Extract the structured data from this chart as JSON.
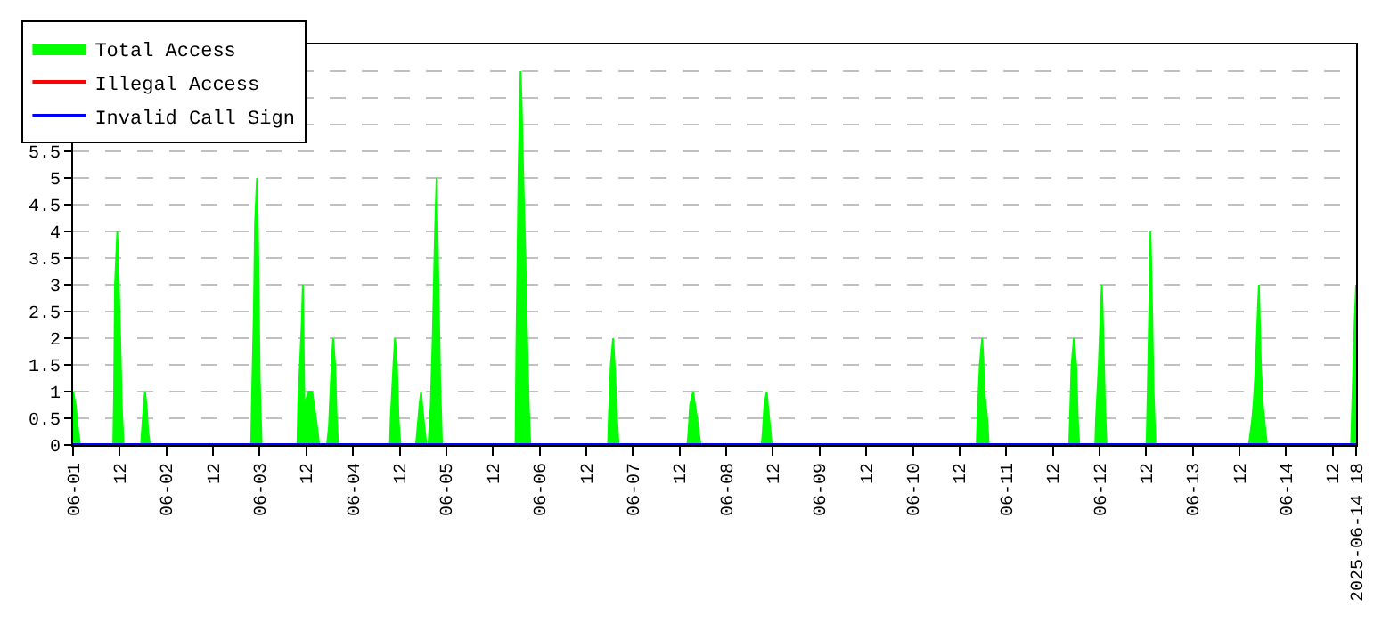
{
  "chart_data": {
    "type": "area",
    "xlim": [
      "2025-06-01T00:00",
      "2025-06-14T18:00"
    ],
    "xticks": [
      {
        "value": "2025-06-01T00:00",
        "label": "06-01"
      },
      {
        "value": "2025-06-01T12:00",
        "label": "12"
      },
      {
        "value": "2025-06-02T00:00",
        "label": "06-02"
      },
      {
        "value": "2025-06-02T12:00",
        "label": "12"
      },
      {
        "value": "2025-06-03T00:00",
        "label": "06-03"
      },
      {
        "value": "2025-06-03T12:00",
        "label": "12"
      },
      {
        "value": "2025-06-04T00:00",
        "label": "06-04"
      },
      {
        "value": "2025-06-04T12:00",
        "label": "12"
      },
      {
        "value": "2025-06-05T00:00",
        "label": "06-05"
      },
      {
        "value": "2025-06-05T12:00",
        "label": "12"
      },
      {
        "value": "2025-06-06T00:00",
        "label": "06-06"
      },
      {
        "value": "2025-06-06T12:00",
        "label": "12"
      },
      {
        "value": "2025-06-07T00:00",
        "label": "06-07"
      },
      {
        "value": "2025-06-07T12:00",
        "label": "12"
      },
      {
        "value": "2025-06-08T00:00",
        "label": "06-08"
      },
      {
        "value": "2025-06-08T12:00",
        "label": "12"
      },
      {
        "value": "2025-06-09T00:00",
        "label": "06-09"
      },
      {
        "value": "2025-06-09T12:00",
        "label": "12"
      },
      {
        "value": "2025-06-10T00:00",
        "label": "06-10"
      },
      {
        "value": "2025-06-10T12:00",
        "label": "12"
      },
      {
        "value": "2025-06-11T00:00",
        "label": "06-11"
      },
      {
        "value": "2025-06-11T12:00",
        "label": "12"
      },
      {
        "value": "2025-06-12T00:00",
        "label": "06-12"
      },
      {
        "value": "2025-06-12T12:00",
        "label": "12"
      },
      {
        "value": "2025-06-13T00:00",
        "label": "06-13"
      },
      {
        "value": "2025-06-13T12:00",
        "label": "12"
      },
      {
        "value": "2025-06-14T00:00",
        "label": "06-14"
      },
      {
        "value": "2025-06-14T12:00",
        "label": "12"
      },
      {
        "value": "2025-06-14T18:00",
        "label": "2025-06-14 18"
      }
    ],
    "ylim": [
      0,
      7.5
    ],
    "yticks": [
      0,
      0.5,
      1,
      1.5,
      2,
      2.5,
      3,
      3.5,
      4,
      4.5,
      5,
      5.5,
      {
        "value": 6,
        "label": null
      },
      {
        "value": 6.5,
        "label": null
      },
      {
        "value": 7,
        "label": null
      },
      {
        "value": 7.5,
        "label": null
      }
    ],
    "grid": "y",
    "legend": "top left",
    "series": [
      {
        "name": "Total Access",
        "color": "#00ff00",
        "x": [
          "2025-06-01T00:00",
          "2025-06-01T00:40",
          "2025-06-01T01:20",
          "2025-06-01T01:48",
          "2025-06-01T10:20",
          "2025-06-01T10:33",
          "2025-06-01T10:47",
          "2025-06-01T11:22",
          "2025-06-01T11:40",
          "2025-06-01T12:07",
          "2025-06-01T12:34",
          "2025-06-01T13:00",
          "2025-06-01T17:30",
          "2025-06-01T17:42",
          "2025-06-01T18:12",
          "2025-06-01T18:30",
          "2025-06-01T18:54",
          "2025-06-01T19:18",
          "2025-06-01T19:48",
          "2025-06-02T21:48",
          "2025-06-02T22:00",
          "2025-06-02T22:30",
          "2025-06-02T22:48",
          "2025-06-02T23:18",
          "2025-06-02T23:36",
          "2025-06-03T00:00",
          "2025-06-03T00:30",
          "2025-06-03T09:42",
          "2025-06-03T09:54",
          "2025-06-03T10:48",
          "2025-06-03T11:06",
          "2025-06-03T11:30",
          "2025-06-03T12:36",
          "2025-06-03T13:30",
          "2025-06-03T14:00",
          "2025-06-03T14:54",
          "2025-06-03T15:18",
          "2025-06-03T17:18",
          "2025-06-03T17:48",
          "2025-06-03T18:12",
          "2025-06-03T18:36",
          "2025-06-03T18:54",
          "2025-06-03T19:24",
          "2025-06-03T19:48",
          "2025-06-03T20:12",
          "2025-06-04T09:30",
          "2025-06-04T09:42",
          "2025-06-04T10:24",
          "2025-06-04T10:48",
          "2025-06-04T11:18",
          "2025-06-04T11:42",
          "2025-06-04T12:12",
          "2025-06-04T16:12",
          "2025-06-04T16:30",
          "2025-06-04T17:06",
          "2025-06-04T17:30",
          "2025-06-04T17:48",
          "2025-06-04T18:30",
          "2025-06-04T18:54",
          "2025-06-04T19:24",
          "2025-06-04T19:36",
          "2025-06-04T20:00",
          "2025-06-04T20:30",
          "2025-06-04T21:06",
          "2025-06-04T21:30",
          "2025-06-04T21:48",
          "2025-06-04T22:24",
          "2025-06-04T22:54",
          "2025-06-05T17:48",
          "2025-06-05T18:00",
          "2025-06-05T18:36",
          "2025-06-05T19:06",
          "2025-06-05T19:24",
          "2025-06-05T19:48",
          "2025-06-05T20:18",
          "2025-06-05T20:42",
          "2025-06-05T21:12",
          "2025-06-05T21:36",
          "2025-06-06T17:36",
          "2025-06-06T17:48",
          "2025-06-06T18:18",
          "2025-06-06T18:54",
          "2025-06-06T19:18",
          "2025-06-06T19:54",
          "2025-06-06T20:18",
          "2025-06-07T14:00",
          "2025-06-07T14:18",
          "2025-06-07T14:42",
          "2025-06-07T15:30",
          "2025-06-07T15:48",
          "2025-06-07T16:30",
          "2025-06-07T17:06",
          "2025-06-07T17:24",
          "2025-06-08T09:06",
          "2025-06-08T09:24",
          "2025-06-08T09:48",
          "2025-06-08T10:24",
          "2025-06-08T10:42",
          "2025-06-08T11:24",
          "2025-06-08T11:42",
          "2025-06-10T16:24",
          "2025-06-10T16:36",
          "2025-06-10T17:12",
          "2025-06-10T17:48",
          "2025-06-10T18:06",
          "2025-06-10T18:24",
          "2025-06-10T19:06",
          "2025-06-10T19:30",
          "2025-06-11T16:12",
          "2025-06-11T16:24",
          "2025-06-11T16:48",
          "2025-06-11T17:24",
          "2025-06-11T18:00",
          "2025-06-11T18:24",
          "2025-06-11T18:48",
          "2025-06-11T22:54",
          "2025-06-11T23:06",
          "2025-06-11T23:48",
          "2025-06-12T00:18",
          "2025-06-12T00:36",
          "2025-06-12T00:54",
          "2025-06-12T01:24",
          "2025-06-12T01:48",
          "2025-06-12T12:06",
          "2025-06-12T12:24",
          "2025-06-12T12:54",
          "2025-06-12T13:06",
          "2025-06-12T13:24",
          "2025-06-12T13:54",
          "2025-06-12T14:24",
          "2025-06-13T14:24",
          "2025-06-13T14:36",
          "2025-06-13T15:18",
          "2025-06-13T15:42",
          "2025-06-13T16:12",
          "2025-06-13T16:42",
          "2025-06-13T17:00",
          "2025-06-13T17:30",
          "2025-06-13T18:00",
          "2025-06-13T18:42",
          "2025-06-13T19:06",
          "2025-06-14T16:42",
          "2025-06-14T17:00",
          "2025-06-14T17:36",
          "2025-06-14T18:00"
        ],
        "values": [
          1,
          0.75,
          0.25,
          0,
          0,
          1,
          3,
          4,
          3.3,
          2,
          0.65,
          0,
          0,
          0.25,
          0.75,
          1,
          0.75,
          0.25,
          0,
          0,
          0.8,
          2.5,
          4.15,
          5,
          3.75,
          1.25,
          0,
          0,
          0.75,
          2.25,
          3,
          0.75,
          1,
          1,
          0.75,
          0.25,
          0,
          0,
          0.33,
          1,
          1.65,
          2,
          1.5,
          0.5,
          0,
          0,
          0.5,
          1.5,
          2,
          1.5,
          0.5,
          0,
          0,
          0.25,
          0.75,
          1,
          0.75,
          0.25,
          0,
          0,
          0.25,
          0.75,
          2,
          4,
          5,
          3.75,
          1.25,
          0,
          0,
          1.75,
          5.25,
          7,
          6.3,
          5,
          3.65,
          2.25,
          0.75,
          0,
          0,
          0.5,
          1.5,
          2,
          1.5,
          0.5,
          0,
          0,
          0.25,
          0.75,
          1,
          0.83,
          0.5,
          0.15,
          0,
          0,
          0.25,
          0.75,
          1,
          0.75,
          0.25,
          0,
          0,
          0.5,
          1.5,
          2,
          1.65,
          1,
          0.5,
          0,
          0,
          0.5,
          1.5,
          2,
          1.5,
          0.5,
          0,
          0,
          0.5,
          1.5,
          2.5,
          3,
          2.25,
          0.75,
          0,
          0,
          1,
          3,
          4,
          3,
          1,
          0,
          0,
          0.1,
          0.5,
          0.85,
          1.5,
          2.5,
          3,
          1.5,
          0.75,
          0.25,
          0,
          0,
          0.75,
          2.25,
          3
        ]
      },
      {
        "name": "Illegal Access",
        "color": "#ff0000",
        "type": "line"
      },
      {
        "name": "Invalid Call Sign",
        "color": "#0000ff",
        "type": "line",
        "x": [
          "2025-06-01T00:00",
          "2025-06-14T18:00"
        ],
        "values": [
          0,
          0
        ]
      }
    ]
  }
}
